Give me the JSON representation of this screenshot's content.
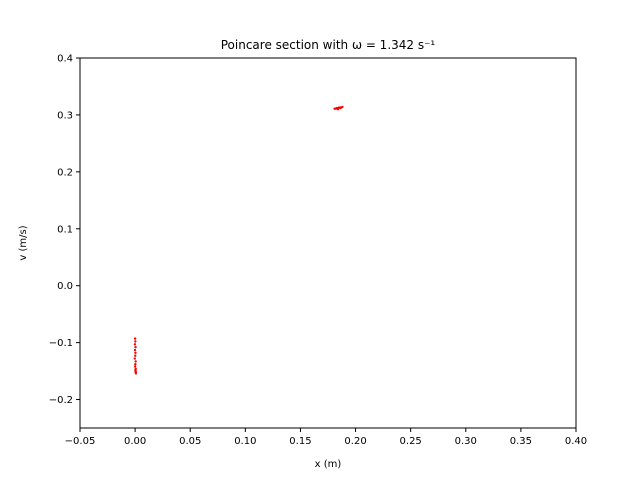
{
  "chart_data": {
    "type": "scatter",
    "title": "Poincare section with ω = 1.342 s⁻¹",
    "xlabel": "x (m)",
    "ylabel": "v (m/s)",
    "xlim": [
      -0.05,
      0.4
    ],
    "ylim": [
      -0.25,
      0.4
    ],
    "xticks": [
      -0.05,
      0.0,
      0.05,
      0.1,
      0.15,
      0.2,
      0.25,
      0.3,
      0.35,
      0.4
    ],
    "xtick_labels": [
      "−0.05",
      "0.00",
      "0.05",
      "0.10",
      "0.15",
      "0.20",
      "0.25",
      "0.30",
      "0.35",
      "0.40"
    ],
    "yticks": [
      -0.2,
      -0.1,
      0.0,
      0.1,
      0.2,
      0.3,
      0.4
    ],
    "ytick_labels": [
      "−0.2",
      "−0.1",
      "0.0",
      "0.1",
      "0.2",
      "0.3",
      "0.4"
    ],
    "grid": false,
    "legend": "none",
    "color": "#ff0000",
    "series": [
      {
        "x": [
          0.181,
          0.182,
          0.183,
          0.184,
          0.185,
          0.186,
          0.187,
          0.188,
          0.184,
          0.186,
          0.0,
          0.0002,
          -0.0002,
          0.0004,
          -0.0001,
          0.0003,
          0.0001,
          -0.0003,
          0.0005,
          0.0002,
          0.0,
          0.0006,
          0.0003,
          0.0004,
          0.0006,
          0.0007
        ],
        "y": [
          0.311,
          0.311,
          0.312,
          0.312,
          0.313,
          0.313,
          0.313,
          0.314,
          0.31,
          0.312,
          -0.093,
          -0.098,
          -0.103,
          -0.108,
          -0.113,
          -0.118,
          -0.123,
          -0.128,
          -0.133,
          -0.138,
          -0.142,
          -0.146,
          -0.148,
          -0.15,
          -0.152,
          -0.154
        ]
      }
    ]
  }
}
